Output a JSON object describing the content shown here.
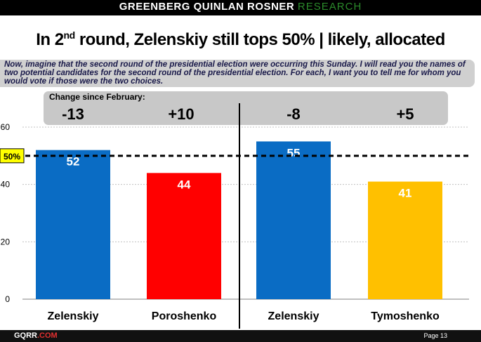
{
  "header": {
    "brand_main": "GREENBERG QUINLAN ROSNER",
    "brand_accent": "RESEARCH"
  },
  "title": {
    "prefix": "In 2",
    "sup": "nd",
    "suffix": " round, Zelenskiy still tops 50% | likely, allocated"
  },
  "question": "Now, imagine that the second round of the presidential election were occurring this Sunday. I will read you the names of two potential candidates for the second round of the presidential election. For each, I want you to tell me for whom you would vote if those were the two choices.",
  "change": {
    "label": "Change since February:",
    "values": [
      "-13",
      "+10",
      "-8",
      "+5"
    ]
  },
  "chart_data": {
    "type": "bar",
    "categories": [
      "Zelenskiy",
      "Poroshenko",
      "Zelenskiy",
      "Tymoshenko"
    ],
    "values": [
      52,
      44,
      55,
      41
    ],
    "colors": [
      "#0a6cc4",
      "#ff0000",
      "#0a6cc4",
      "#ffc000"
    ],
    "value_labels": [
      "52",
      "44",
      "55",
      "41"
    ],
    "ylim": [
      0,
      60
    ],
    "yticks": [
      0,
      20,
      40,
      60
    ],
    "ytick_labels": [
      "0",
      "20",
      "40",
      "60"
    ],
    "reference_line": {
      "value": 50,
      "label": "50%",
      "color": "#ffff00"
    },
    "groups": [
      [
        "Zelenskiy",
        "Poroshenko"
      ],
      [
        "Zelenskiy",
        "Tymoshenko"
      ]
    ],
    "grid": true,
    "gridline_color": "#c0c0c0"
  },
  "footer": {
    "logo_main": "GQRR",
    "logo_accent": ".COM",
    "page": "Page 13"
  }
}
